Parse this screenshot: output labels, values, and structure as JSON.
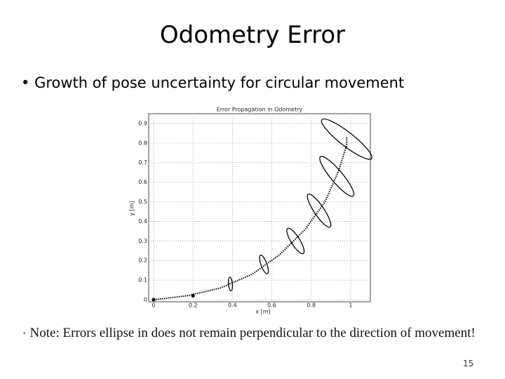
{
  "slide": {
    "title": "Odometry Error",
    "bullet": "Growth of pose uncertainty for circular movement",
    "note": "Note: Errors ellipse in does not remain perpendicular to the direction of movement!",
    "page_number": "15"
  },
  "chart_data": {
    "type": "ellipse-path",
    "title": "Error Propagation in Odometry",
    "xlabel": "x [m]",
    "ylabel": "y [m]",
    "xlim": [
      0,
      1.1
    ],
    "ylim": [
      0,
      0.95
    ],
    "xticks": [
      0,
      0.2,
      0.4,
      0.6,
      0.8,
      1
    ],
    "yticks": [
      0,
      0.1,
      0.2,
      0.3,
      0.4,
      0.5,
      0.6,
      0.7,
      0.8,
      0.9
    ],
    "grid": true,
    "color": "#000000",
    "trajectory": {
      "x": [
        0,
        0.17,
        0.34,
        0.5,
        0.64,
        0.77,
        0.87,
        0.94,
        0.98,
        0.98
      ],
      "y": [
        0,
        0.02,
        0.06,
        0.13,
        0.23,
        0.36,
        0.5,
        0.66,
        0.79,
        0.83
      ]
    },
    "markers": {
      "x": [
        0,
        0.2
      ],
      "y": [
        0,
        0.02
      ]
    },
    "ellipses": [
      {
        "x": 0.39,
        "y": 0.08,
        "a": 0.035,
        "b": 0.01,
        "angle": 85
      },
      {
        "x": 0.56,
        "y": 0.18,
        "a": 0.05,
        "b": 0.015,
        "angle": 70
      },
      {
        "x": 0.72,
        "y": 0.3,
        "a": 0.075,
        "b": 0.022,
        "angle": 58
      },
      {
        "x": 0.84,
        "y": 0.455,
        "a": 0.1,
        "b": 0.025,
        "angle": 56
      },
      {
        "x": 0.93,
        "y": 0.63,
        "a": 0.13,
        "b": 0.03,
        "angle": 50
      },
      {
        "x": 0.98,
        "y": 0.82,
        "a": 0.16,
        "b": 0.035,
        "angle": 38
      }
    ]
  }
}
